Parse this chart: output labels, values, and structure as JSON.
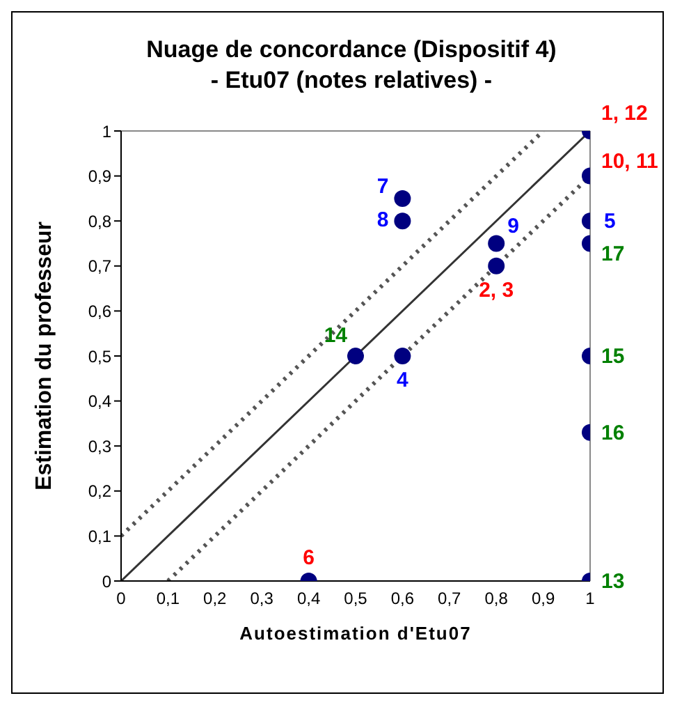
{
  "chart_data": {
    "type": "scatter",
    "title": "Nuage de concordance (Dispositif 4)",
    "subtitle": "- Etu07 (notes relatives) -",
    "xlabel": "Autoestimation d'Etu07",
    "ylabel": "Estimation du professeur",
    "xlim": [
      0,
      1
    ],
    "ylim": [
      0,
      1
    ],
    "xticks": [
      0,
      {
        "value": 0.1,
        "label": "0,1"
      },
      {
        "value": 0.2,
        "label": "0,2"
      },
      {
        "value": 0.3,
        "label": "0,3"
      },
      {
        "value": 0.4,
        "label": "0,4"
      },
      {
        "value": 0.5,
        "label": "0,5"
      },
      {
        "value": 0.6,
        "label": "0,6"
      },
      {
        "value": 0.7,
        "label": "0,7"
      },
      {
        "value": 0.8,
        "label": "0,8"
      },
      {
        "value": 0.9,
        "label": "0,9"
      },
      1
    ],
    "yticks": [
      0,
      {
        "value": 0.1,
        "label": "0,1"
      },
      {
        "value": 0.2,
        "label": "0,2"
      },
      {
        "value": 0.3,
        "label": "0,3"
      },
      {
        "value": 0.4,
        "label": "0,4"
      },
      {
        "value": 0.5,
        "label": "0,5"
      },
      {
        "value": 0.6,
        "label": "0,6"
      },
      {
        "value": 0.7,
        "label": "0,7"
      },
      {
        "value": 0.8,
        "label": "0,8"
      },
      {
        "value": 0.9,
        "label": "0,9"
      },
      1
    ],
    "grid": false,
    "legend": false,
    "marker": "circle",
    "series": [
      {
        "color": "#000080",
        "x": [
          1,
          1,
          0.8,
          0.4
        ],
        "values": [
          1,
          0.9,
          0.7,
          0
        ]
      },
      {
        "color": "#000080",
        "x": [
          1,
          0.6,
          0.6,
          0.8,
          0.6
        ],
        "values": [
          0.8,
          0.85,
          0.8,
          0.75,
          0.5
        ]
      },
      {
        "color": "#000080",
        "x": [
          1,
          0.5,
          1,
          1,
          1
        ],
        "values": [
          0.75,
          0.5,
          0.5,
          0.33,
          0
        ]
      },
      {
        "type": "line",
        "color": "#333333",
        "line_style": "solid",
        "marker": "none",
        "x": [
          0,
          1
        ],
        "values": [
          0,
          1
        ]
      },
      {
        "type": "line",
        "color": "#555555",
        "line_style": "dotted",
        "marker": "none",
        "x": [
          0,
          0.9
        ],
        "values": [
          0.1,
          1
        ]
      },
      {
        "type": "line",
        "color": "#555555",
        "line_style": "dotted",
        "marker": "none",
        "x": [
          0.1,
          1
        ],
        "values": [
          0,
          0.9
        ]
      }
    ],
    "annotations": [
      {
        "text": "1, 12",
        "x": 1,
        "y": 1
      },
      {
        "text": "10, 11",
        "x": 1,
        "y": 0.9
      },
      {
        "text": "2, 3",
        "x": 0.8,
        "y": 0.7
      },
      {
        "text": "6",
        "x": 0.4,
        "y": 0
      },
      {
        "text": "5",
        "x": 1,
        "y": 0.8
      },
      {
        "text": "7",
        "x": 0.6,
        "y": 0.85
      },
      {
        "text": "8",
        "x": 0.6,
        "y": 0.8
      },
      {
        "text": "9",
        "x": 0.8,
        "y": 0.75
      },
      {
        "text": "4",
        "x": 0.6,
        "y": 0.5
      },
      {
        "text": "17",
        "x": 1,
        "y": 0.75
      },
      {
        "text": "14",
        "x": 0.5,
        "y": 0.5
      },
      {
        "text": "15",
        "x": 1,
        "y": 0.5
      },
      {
        "text": "16",
        "x": 1,
        "y": 0.33
      },
      {
        "text": "13",
        "x": 1,
        "y": 0
      }
    ]
  }
}
